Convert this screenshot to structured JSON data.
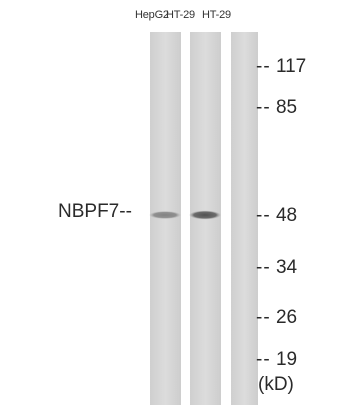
{
  "lanes": [
    {
      "label": "HepG2",
      "band_intensity": 0.55
    },
    {
      "label": "HT-29",
      "band_intensity": 0.85
    },
    {
      "label": "HT-29",
      "band_intensity": 0.0
    }
  ],
  "protein_label": "NBPF7--",
  "markers": [
    {
      "dash": "--",
      "value": "117"
    },
    {
      "dash": "--",
      "value": "85"
    },
    {
      "dash": "--",
      "value": "48"
    },
    {
      "dash": "--",
      "value": "34"
    },
    {
      "dash": "--",
      "value": "26"
    },
    {
      "dash": "--",
      "value": "19"
    }
  ],
  "unit": "(kD)",
  "colors": {
    "lane_background": "#d8d8d8",
    "band": "#4a4a4a"
  }
}
